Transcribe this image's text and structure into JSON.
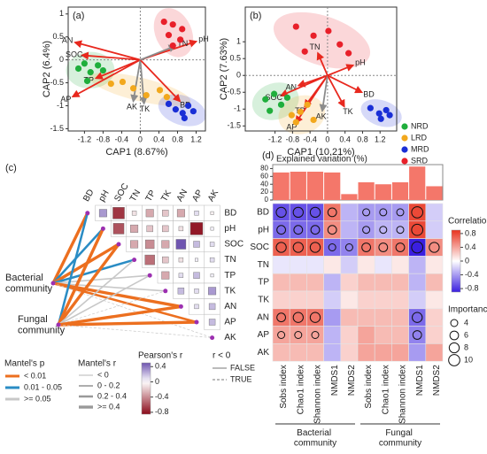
{
  "chart_data": [
    {
      "type": "scatter",
      "panel": "(a)",
      "x_label": "CAP1 (8.67%)",
      "y_label": "CAP2 (6.4%)",
      "xlim": [
        -1.55,
        1.4
      ],
      "ylim": [
        -1.55,
        1.15
      ],
      "xticks": [
        -1.2,
        -0.8,
        -0.4,
        0,
        0.4,
        0.8,
        1.2
      ],
      "yticks": [
        -1.5,
        -1,
        -0.5,
        0,
        0.5,
        1
      ],
      "series": [
        {
          "color": "#1fae3c",
          "x": [
            -1.33,
            -1.2,
            -1.07,
            -0.91,
            -0.8,
            -1.14
          ],
          "y": [
            -0.19,
            -0.08,
            -0.27,
            -0.12,
            -0.23,
            -0.46
          ]
        },
        {
          "color": "#f2a81d",
          "x": [
            -0.63,
            -0.38,
            -0.15,
            0.42,
            0.57,
            0.13
          ],
          "y": [
            -0.52,
            -0.48,
            -0.62,
            -0.66,
            -0.81,
            -0.77
          ]
        },
        {
          "color": "#1a2fd6",
          "x": [
            0.61,
            0.76,
            0.91,
            1.03,
            1.14,
            0.95
          ],
          "y": [
            -0.96,
            -1.08,
            -1.16,
            -1.0,
            -1.12,
            -1.27
          ]
        },
        {
          "color": "#e8202a",
          "x": [
            0.51,
            0.7,
            0.9,
            0.61,
            0.86,
            0.7
          ],
          "y": [
            0.83,
            0.77,
            0.67,
            0.54,
            0.44,
            0.31
          ]
        }
      ],
      "arrows": [
        {
          "label": "AN",
          "x": -1.4,
          "y": 0.38,
          "color": "#e8281e"
        },
        {
          "label": "SOC",
          "x": -1.25,
          "y": 0.1,
          "color": "#e8281e"
        },
        {
          "label": "TP",
          "x": -0.95,
          "y": -0.4,
          "color": "#e8281e"
        },
        {
          "label": "AP",
          "x": -1.45,
          "y": -0.8,
          "color": "#e8281e"
        },
        {
          "label": "AK",
          "x": -0.15,
          "y": -0.9,
          "color": "#8c8c8c"
        },
        {
          "label": "TK",
          "x": 0.08,
          "y": -0.95,
          "color": "#8c8c8c"
        },
        {
          "label": "BD",
          "x": 0.85,
          "y": -0.9,
          "color": "#e8281e"
        },
        {
          "label": "pH",
          "x": 1.2,
          "y": 0.4,
          "color": "#e8281e"
        },
        {
          "label": "TN",
          "x": 0.75,
          "y": 0.3,
          "color": "#8c8c8c"
        }
      ]
    },
    {
      "type": "scatter",
      "panel": "(b)",
      "x_label": "CAP1 (10.21%)",
      "y_label": "CAP2 (7.63%)",
      "xlim": [
        -1.88,
        1.58
      ],
      "ylim": [
        -1.65,
        2.03
      ],
      "xticks": [
        -1.2,
        -0.8,
        -0.4,
        0,
        0.4,
        0.8,
        1.2
      ],
      "yticks": [
        -1.5,
        -1,
        -0.5,
        0,
        0.5,
        1
      ],
      "legend": "right",
      "series": [
        {
          "name": "NRD",
          "color": "#1fae3c",
          "x": [
            -1.42,
            -1.22,
            -1.06,
            -0.92,
            -1.32
          ],
          "y": [
            -0.71,
            -0.55,
            -0.87,
            -0.66,
            -1.05
          ]
        },
        {
          "name": "LRD",
          "color": "#f2a81d",
          "x": [
            -0.82,
            -0.62,
            -0.46,
            -0.72,
            -0.32
          ],
          "y": [
            -1.18,
            -1.08,
            -0.87,
            -1.39,
            -1.32
          ]
        },
        {
          "name": "MRD",
          "color": "#1a2fd6",
          "x": [
            0.98,
            1.18,
            1.34,
            1.22,
            1.42
          ],
          "y": [
            -0.97,
            -1.13,
            -1.03,
            -1.29,
            -1.18
          ]
        },
        {
          "name": "SRD",
          "color": "#e8202a",
          "x": [
            -0.72,
            -0.32,
            0.02,
            0.28,
            0.48,
            -0.52
          ],
          "y": [
            1.45,
            1.18,
            1.32,
            0.92,
            0.66,
            0.71
          ]
        }
      ],
      "arrows": [
        {
          "label": "pH",
          "x": 0.58,
          "y": 0.3,
          "color": "#e8281e"
        },
        {
          "label": "TN",
          "x": -0.22,
          "y": 0.66,
          "color": "#e8281e"
        },
        {
          "label": "AN",
          "x": -0.66,
          "y": -0.3,
          "color": "#e8281e"
        },
        {
          "label": "SOC",
          "x": -1.06,
          "y": -0.6,
          "color": "#e8281e"
        },
        {
          "label": "TP",
          "x": -0.52,
          "y": -0.92,
          "color": "#e8281e"
        },
        {
          "label": "AP",
          "x": -0.72,
          "y": -1.4,
          "color": "#e8281e"
        },
        {
          "label": "AK",
          "x": -0.12,
          "y": -1.05,
          "color": "#8c8c8c"
        },
        {
          "label": "TK",
          "x": 0.38,
          "y": -0.92,
          "color": "#e8281e"
        },
        {
          "label": "BD",
          "x": 0.78,
          "y": -0.5,
          "color": "#e8281e"
        }
      ]
    },
    {
      "type": "correlation-matrix",
      "panel": "(c)",
      "variables": [
        "BD",
        "pH",
        "SOC",
        "TN",
        "TP",
        "TK",
        "AN",
        "AP",
        "AK"
      ],
      "r": [
        [
          null,
          0.3,
          -0.7,
          -0.1,
          -0.3,
          -0.2,
          -0.3,
          0.1,
          -0.05
        ],
        [
          null,
          null,
          -0.6,
          -0.3,
          -0.2,
          -0.2,
          -0.1,
          -0.8,
          0.05
        ],
        [
          null,
          null,
          null,
          -0.3,
          -0.4,
          -0.3,
          0.5,
          0.2,
          0.1
        ],
        [
          null,
          null,
          null,
          null,
          -0.5,
          -0.2,
          -0.1,
          0.05,
          0.1
        ],
        [
          null,
          null,
          null,
          null,
          null,
          -0.3,
          0.1,
          0.2,
          0.05
        ],
        [
          null,
          null,
          null,
          null,
          null,
          null,
          0.2,
          0.1,
          0.3
        ],
        [
          null,
          null,
          null,
          null,
          null,
          null,
          null,
          0.1,
          0.2
        ],
        [
          null,
          null,
          null,
          null,
          null,
          null,
          null,
          null,
          0.2
        ],
        [
          null,
          null,
          null,
          null,
          null,
          null,
          null,
          null,
          null
        ]
      ],
      "colorbar": {
        "title": "Pearson's r",
        "clim": [
          -0.85,
          0.5
        ],
        "ticks": [
          0.4,
          0,
          -0.4,
          -0.8
        ],
        "colors": [
          "#8b0a1a",
          "#ffffff",
          "#6f55b0"
        ]
      },
      "communities": [
        {
          "label": "Bacterial community",
          "links": [
            {
              "to": "BD",
              "p": "< 0.01",
              "r": ">= 0.4",
              "negative": false
            },
            {
              "to": "pH",
              "p": "0.01 - 0.05",
              "r": "0.2 - 0.4",
              "negative": false
            },
            {
              "to": "SOC",
              "p": "< 0.01",
              "r": ">= 0.4",
              "negative": false
            },
            {
              "to": "TN",
              "p": "0.01 - 0.05",
              "r": "0.2 - 0.4",
              "negative": false
            },
            {
              "to": "TP",
              "p": ">= 0.05",
              "r": "0 - 0.2",
              "negative": false
            },
            {
              "to": "TK",
              "p": ">= 0.05",
              "r": "0 - 0.2",
              "negative": false
            },
            {
              "to": "AN",
              "p": "< 0.01",
              "r": ">= 0.4",
              "negative": false
            },
            {
              "to": "AP",
              "p": "< 0.01",
              "r": "0.2 - 0.4",
              "negative": false
            },
            {
              "to": "AK",
              "p": ">= 0.05",
              "r": "< 0",
              "negative": true
            }
          ]
        },
        {
          "label": "Fungal community",
          "links": [
            {
              "to": "BD",
              "p": "0.01 - 0.05",
              "r": "0.2 - 0.4",
              "negative": false
            },
            {
              "to": "pH",
              "p": "< 0.01",
              "r": ">= 0.4",
              "negative": false
            },
            {
              "to": "SOC",
              "p": "< 0.01",
              "r": ">= 0.4",
              "negative": false
            },
            {
              "to": "TN",
              "p": ">= 0.05",
              "r": "0 - 0.2",
              "negative": false
            },
            {
              "to": "TP",
              "p": ">= 0.05",
              "r": "0 - 0.2",
              "negative": false
            },
            {
              "to": "TK",
              "p": ">= 0.05",
              "r": "< 0",
              "negative": true
            },
            {
              "to": "AN",
              "p": "< 0.01",
              "r": ">= 0.4",
              "negative": false
            },
            {
              "to": "AP",
              "p": "< 0.01",
              "r": ">= 0.4",
              "negative": false
            },
            {
              "to": "AK",
              "p": ">= 0.05",
              "r": "< 0",
              "negative": true
            }
          ]
        }
      ],
      "mantel_p": {
        "title": "Mantel's p",
        "items": [
          {
            "label": "< 0.01",
            "color": "#ec6f1f"
          },
          {
            "label": "0.01 - 0.05",
            "color": "#2a8cc4"
          },
          {
            "label": ">= 0.05",
            "color": "#c8c8c8"
          }
        ]
      },
      "mantel_r": {
        "title": "Mantel's r",
        "items": [
          "< 0",
          "0 - 0.2",
          "0.2 - 0.4",
          ">= 0.4"
        ]
      },
      "negative_legend": {
        "title": "r < 0",
        "items": [
          "FALSE",
          "TRUE"
        ]
      }
    },
    {
      "type": "heatmap",
      "panel": "(d)",
      "rows": [
        "BD",
        "pH",
        "SOC",
        "TN",
        "TP",
        "TK",
        "AN",
        "AP",
        "AK"
      ],
      "groups": [
        {
          "label": "Bacterial community",
          "columns": [
            "Sobs index",
            "Chao1 index",
            "Shannon index",
            "NMDS1",
            "NMDS2"
          ]
        },
        {
          "label": "Fungal community",
          "columns": [
            "Sobs index",
            "Chao1 index",
            "Shannon index",
            "NMDS1",
            "NMDS2"
          ]
        }
      ],
      "values": [
        [
          -0.7,
          -0.7,
          -0.7,
          0.6,
          -0.3,
          -0.4,
          -0.4,
          -0.4,
          0.8,
          -0.2
        ],
        [
          -0.6,
          -0.6,
          -0.6,
          0.5,
          -0.3,
          -0.4,
          -0.3,
          -0.3,
          0.8,
          -0.2
        ],
        [
          0.7,
          0.7,
          0.7,
          -0.6,
          -0.5,
          0.6,
          0.5,
          0.6,
          -0.9,
          0.5
        ],
        [
          -0.1,
          -0.1,
          -0.1,
          0.1,
          -0.2,
          0.1,
          -0.1,
          0.1,
          -0.3,
          0.1
        ],
        [
          0.3,
          0.3,
          0.3,
          -0.3,
          0.2,
          0.3,
          0.3,
          0.3,
          -0.3,
          0.3
        ],
        [
          0.2,
          0.2,
          0.2,
          -0.2,
          0.1,
          0.2,
          0.2,
          0.2,
          -0.2,
          0.1
        ],
        [
          0.6,
          0.6,
          0.6,
          -0.4,
          0.3,
          0.3,
          0.3,
          0.3,
          -0.6,
          0.2
        ],
        [
          0.4,
          0.4,
          0.4,
          -0.3,
          0.2,
          0.4,
          0.3,
          0.3,
          -0.5,
          0.2
        ],
        [
          0.3,
          0.3,
          0.3,
          -0.3,
          0.2,
          0.4,
          0.4,
          0.4,
          -0.4,
          0.4
        ]
      ],
      "importance": [
        [
          8,
          8,
          8,
          6,
          null,
          4,
          4,
          4,
          10,
          null
        ],
        [
          6,
          6,
          6,
          6,
          null,
          4,
          4,
          4,
          10,
          null
        ],
        [
          8,
          8,
          8,
          4,
          4,
          6,
          6,
          6,
          10,
          8
        ],
        [
          null,
          null,
          null,
          null,
          null,
          null,
          null,
          null,
          null,
          null
        ],
        [
          null,
          null,
          null,
          null,
          null,
          null,
          null,
          null,
          null,
          null
        ],
        [
          null,
          null,
          null,
          null,
          null,
          null,
          null,
          null,
          null,
          null
        ],
        [
          6,
          8,
          8,
          null,
          null,
          null,
          null,
          null,
          8,
          null
        ],
        [
          4,
          4,
          4,
          null,
          null,
          null,
          null,
          null,
          6,
          null
        ],
        [
          null,
          null,
          null,
          null,
          null,
          null,
          null,
          null,
          null,
          null
        ]
      ],
      "bar": {
        "title": "Explained variation (%)",
        "values": [
          70,
          72,
          72,
          70,
          15,
          45,
          40,
          45,
          85,
          35
        ],
        "color": "#f4776a",
        "ylim": [
          0,
          90
        ],
        "yticks": [
          0,
          20,
          40,
          60,
          80
        ]
      },
      "colorbar": {
        "title": "Correlation",
        "clim": [
          -0.9,
          0.9
        ],
        "ticks": [
          0.8,
          0.4,
          0,
          -0.4,
          -0.8
        ],
        "colors": [
          "#3a1fe0",
          "#ffffff",
          "#e8321e"
        ]
      },
      "importance_legend": {
        "title": "Importance",
        "values": [
          4,
          6,
          8,
          10
        ]
      }
    }
  ]
}
